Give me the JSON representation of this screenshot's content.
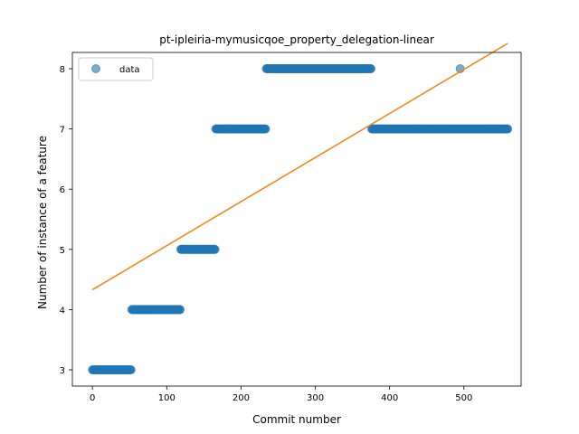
{
  "chart_data": {
    "type": "scatter",
    "title": "pt-ipleiria-mymusicqoe_property_delegation-linear",
    "xlabel": "Commit number",
    "ylabel": "Number of instance of a feature",
    "xlim": [
      -27,
      577
    ],
    "ylim": [
      2.73,
      8.27
    ],
    "xticks": [
      0,
      100,
      200,
      300,
      400,
      500
    ],
    "yticks": [
      3,
      4,
      5,
      6,
      7,
      8
    ],
    "grid": false,
    "legend": {
      "position": "top-left",
      "entries": [
        "data"
      ]
    },
    "colors": {
      "data": "#1f77b4",
      "fit": "#ff7f0e"
    },
    "series": [
      {
        "name": "data",
        "kind": "points",
        "segments": [
          {
            "x_start": 0,
            "x_end": 52,
            "y": 3
          },
          {
            "x_start": 53,
            "x_end": 118,
            "y": 4
          },
          {
            "x_start": 119,
            "x_end": 165,
            "y": 5
          },
          {
            "x_start": 166,
            "x_end": 233,
            "y": 7
          },
          {
            "x_start": 234,
            "x_end": 375,
            "y": 8
          },
          {
            "x_start": 376,
            "x_end": 494,
            "y": 7
          },
          {
            "x_start": 495,
            "x_end": 495,
            "y": 8
          },
          {
            "x_start": 496,
            "x_end": 559,
            "y": 7
          }
        ]
      },
      {
        "kind": "line",
        "x": [
          0,
          559
        ],
        "y": [
          4.33,
          8.42
        ]
      }
    ]
  }
}
